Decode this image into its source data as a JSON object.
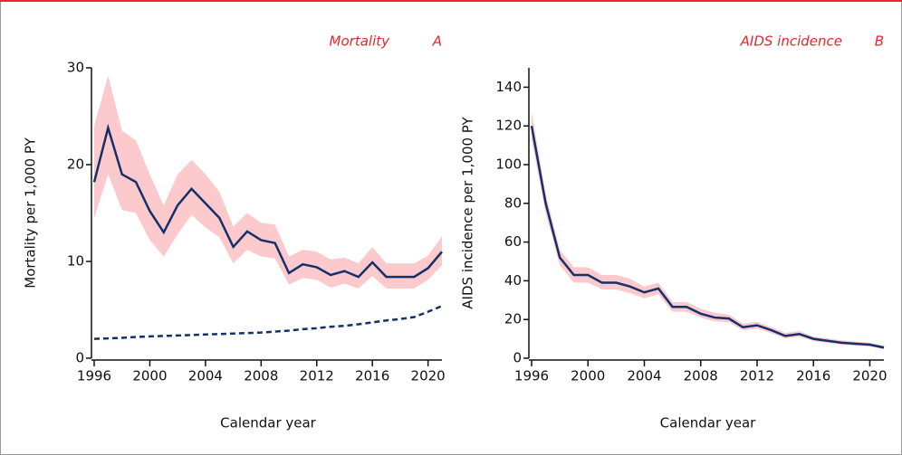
{
  "chart_data": [
    {
      "type": "line",
      "title": "Mortality",
      "panel_label": "A",
      "x_label": "Calendar year",
      "y_label": "Mortality per 1,000 PY",
      "x": [
        1996,
        1997,
        1998,
        1999,
        2000,
        2001,
        2002,
        2003,
        2004,
        2005,
        2006,
        2007,
        2008,
        2009,
        2010,
        2011,
        2012,
        2013,
        2014,
        2015,
        2016,
        2017,
        2018,
        2019,
        2020,
        2021
      ],
      "xlim": [
        1996,
        2021
      ],
      "xticks": [
        1996,
        2000,
        2004,
        2008,
        2012,
        2016,
        2020
      ],
      "ylim": [
        0,
        30
      ],
      "yticks": [
        0,
        10,
        20,
        30
      ],
      "band_color": "#fcc9cd",
      "series": [
        {
          "color": "#14306b",
          "dash": false,
          "values": [
            18.2,
            23.8,
            19,
            18.2,
            15.2,
            13,
            15.8,
            17.5,
            16,
            14.5,
            11.5,
            13.1,
            12.2,
            11.9,
            8.8,
            9.7,
            9.4,
            8.6,
            9,
            8.4,
            9.9,
            8.4,
            8.4,
            8.4,
            9.3,
            11
          ],
          "upper": [
            24,
            29.2,
            23.5,
            22.5,
            19,
            15.8,
            19,
            20.5,
            19,
            17.2,
            13.6,
            15,
            14,
            13.8,
            10.5,
            11.2,
            11,
            10.2,
            10.4,
            9.8,
            11.5,
            9.8,
            9.8,
            9.8,
            10.6,
            12.6
          ],
          "lower": [
            14.5,
            19,
            15.3,
            15,
            12.2,
            10.5,
            12.8,
            14.8,
            13.5,
            12.5,
            9.8,
            11.2,
            10.5,
            10.3,
            7.6,
            8.3,
            8.1,
            7.3,
            7.7,
            7.2,
            8.5,
            7.2,
            7.2,
            7.2,
            8.1,
            9.6
          ]
        },
        {
          "color": "#14306b",
          "dash": true,
          "values": [
            2.0,
            2.05,
            2.1,
            2.2,
            2.25,
            2.3,
            2.35,
            2.4,
            2.45,
            2.5,
            2.55,
            2.6,
            2.65,
            2.75,
            2.85,
            3.0,
            3.1,
            3.25,
            3.35,
            3.5,
            3.7,
            3.9,
            4.05,
            4.25,
            4.8,
            5.4
          ]
        }
      ]
    },
    {
      "type": "line",
      "title": "AIDS incidence",
      "panel_label": "B",
      "x_label": "Calendar year",
      "y_label": "AIDS incidence per 1,000 PY",
      "x": [
        1996,
        1997,
        1998,
        1999,
        2000,
        2001,
        2002,
        2003,
        2004,
        2005,
        2006,
        2007,
        2008,
        2009,
        2010,
        2011,
        2012,
        2013,
        2014,
        2015,
        2016,
        2017,
        2018,
        2019,
        2020,
        2021
      ],
      "xlim": [
        1996,
        2021
      ],
      "xticks": [
        1996,
        2000,
        2004,
        2008,
        2012,
        2016,
        2020
      ],
      "ylim": [
        0,
        150
      ],
      "yticks": [
        0,
        20,
        40,
        60,
        80,
        100,
        120,
        140
      ],
      "band_color": "#fcc9cd",
      "series": [
        {
          "color": "#14306b",
          "dash": false,
          "values": [
            120,
            80,
            52,
            43,
            43,
            39,
            39,
            37,
            34,
            36,
            26.5,
            26.5,
            23,
            21,
            20.5,
            16,
            17,
            14.5,
            11.5,
            12.5,
            10,
            9,
            8,
            7.5,
            7,
            5.5
          ],
          "upper": [
            127,
            85,
            56,
            47,
            47,
            43,
            43,
            41,
            37,
            39,
            29,
            29,
            25.5,
            23.5,
            22.5,
            17.8,
            18.8,
            16.2,
            13,
            14,
            11.2,
            10.2,
            9.2,
            8.6,
            8,
            6.5
          ],
          "lower": [
            113,
            75,
            48,
            39,
            39,
            35.5,
            35.5,
            33.5,
            31,
            33,
            24,
            24,
            21,
            19,
            18.6,
            14.4,
            15.3,
            13,
            10.2,
            11.1,
            8.9,
            7.9,
            7,
            6.5,
            6.1,
            4.6
          ]
        }
      ]
    }
  ]
}
